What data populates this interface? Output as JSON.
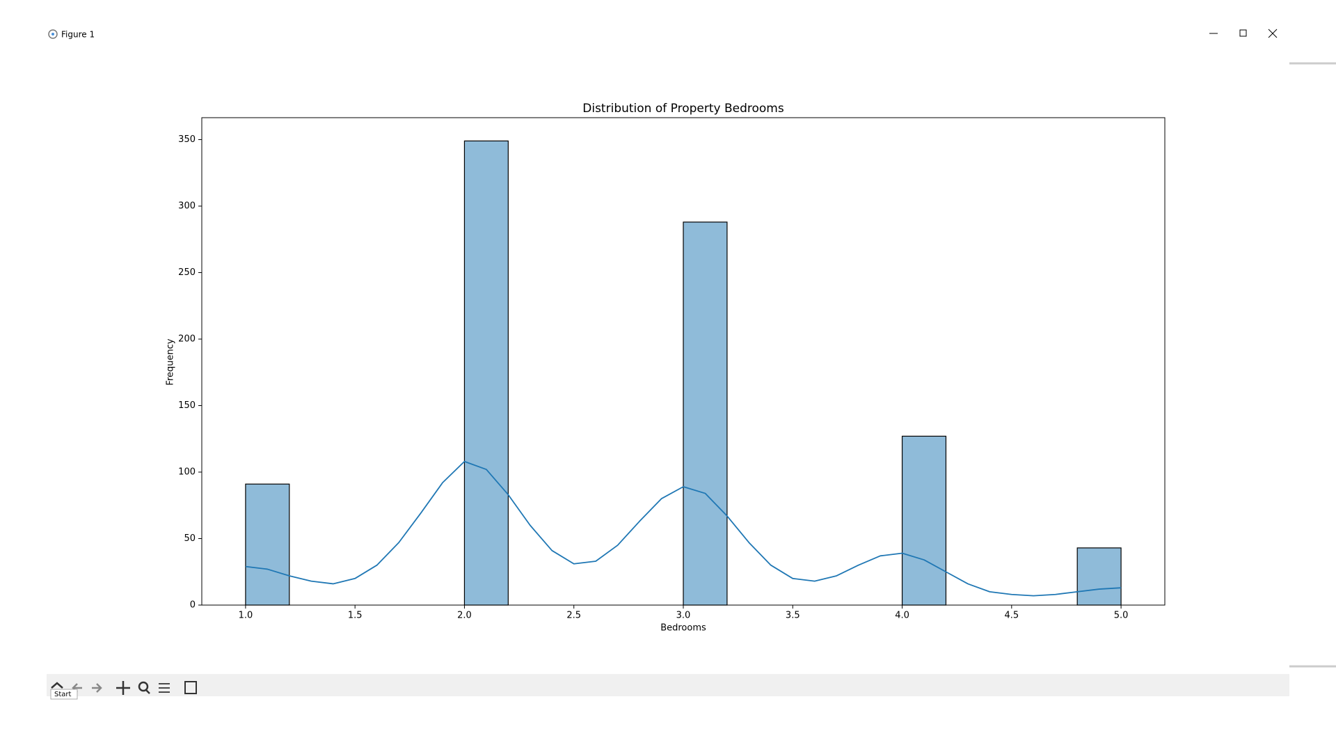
{
  "window": {
    "title": "Figure 1"
  },
  "toolbar": {
    "tooltip": "Start"
  },
  "chart_data": {
    "type": "histogram",
    "title": "Distribution of Property Bedrooms",
    "x_label": "Bedrooms",
    "y_label": "Frequency",
    "color": "#1f77b4",
    "bins": [
      1.0,
      1.2,
      1.4,
      1.6,
      1.8,
      2.0,
      2.2,
      2.4,
      2.6,
      2.8,
      3.0,
      3.2,
      3.4,
      3.6,
      3.8,
      4.0,
      4.2,
      4.4,
      4.6,
      4.8,
      5.0
    ],
    "values": [
      91,
      0,
      0,
      0,
      0,
      349,
      0,
      0,
      0,
      0,
      288,
      0,
      0,
      0,
      0,
      127,
      0,
      0,
      0,
      43
    ],
    "kde": {
      "color": "#1f77b4",
      "x": [
        1.0,
        1.1,
        1.2,
        1.3,
        1.4,
        1.5,
        1.6,
        1.7,
        1.8,
        1.9,
        2.0,
        2.1,
        2.2,
        2.3,
        2.4,
        2.5,
        2.6,
        2.7,
        2.8,
        2.9,
        3.0,
        3.1,
        3.2,
        3.3,
        3.4,
        3.5,
        3.6,
        3.7,
        3.8,
        3.9,
        4.0,
        4.1,
        4.2,
        4.3,
        4.4,
        4.5,
        4.6,
        4.7,
        4.8,
        4.9,
        5.0
      ],
      "values": [
        29,
        27,
        22,
        18,
        16,
        20,
        30,
        47,
        69,
        92,
        108,
        102,
        83,
        60,
        41,
        31,
        33,
        45,
        63,
        80,
        89,
        84,
        67,
        47,
        30,
        20,
        18,
        22,
        30,
        37,
        39,
        34,
        25,
        16,
        10,
        8,
        7,
        8,
        10,
        12,
        13
      ]
    },
    "xlim": [
      0.8,
      5.2
    ],
    "ylim": [
      0,
      366.5
    ],
    "xticks": [
      {
        "value": 1,
        "label": "1.0"
      },
      1.5,
      {
        "value": 2,
        "label": "2.0"
      },
      2.5,
      {
        "value": 3,
        "label": "3.0"
      },
      3.5,
      {
        "value": 4,
        "label": "4.0"
      },
      4.5,
      {
        "value": 5,
        "label": "5.0"
      }
    ],
    "yticks": [
      0,
      50,
      100,
      150,
      200,
      250,
      300,
      350
    ]
  }
}
